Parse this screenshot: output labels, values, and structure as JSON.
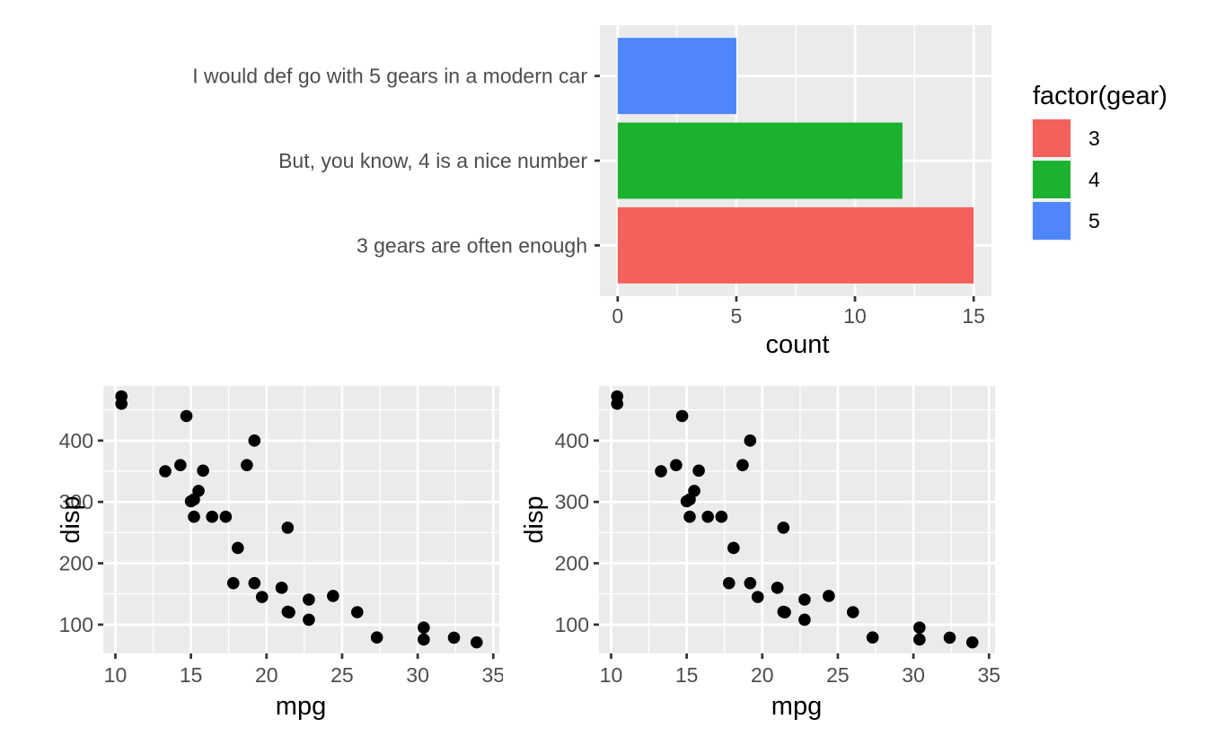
{
  "theme": {
    "background": "#FFFFFF",
    "panel_bg": "#EBEBEB",
    "grid_color": "#FFFFFF",
    "tick_label_color": "#4D4D4D",
    "axis_title_color": "#000000",
    "tick_mark_color": "#333333",
    "point_color": "#000000",
    "legend_key_bg": "#F2F2F2"
  },
  "chart_data": [
    {
      "id": "gear-bar-chart",
      "type": "bar",
      "orientation": "horizontal",
      "title": "",
      "xlabel": "count",
      "ylabel": "",
      "categories": [
        "I would def go with 5 gears in a modern car",
        "But, you know, 4 is a nice number",
        "3 gears are often enough"
      ],
      "values": [
        5,
        12,
        15
      ],
      "colors": [
        "#4F86FC",
        "#1CB22F",
        "#F4605C"
      ],
      "x_ticks": [
        0,
        5,
        10,
        15
      ],
      "xlim": [
        -0.75,
        15.75
      ],
      "grid": true,
      "legend": {
        "position": "right",
        "title": "factor(gear)",
        "entries": [
          {
            "label": "3",
            "color": "#F4605C"
          },
          {
            "label": "4",
            "color": "#1CB22F"
          },
          {
            "label": "5",
            "color": "#4F86FC"
          }
        ]
      }
    },
    {
      "id": "scatter-left",
      "type": "scatter",
      "title": "",
      "xlabel": "mpg",
      "ylabel": "disp",
      "x_ticks": [
        10,
        15,
        20,
        25,
        30,
        35
      ],
      "y_ticks": [
        100,
        200,
        300,
        400
      ],
      "xlim": [
        9.2,
        35.4
      ],
      "ylim": [
        53,
        489
      ],
      "grid": true,
      "points": [
        [
          21.0,
          160.0
        ],
        [
          21.0,
          160.0
        ],
        [
          22.8,
          108.0
        ],
        [
          21.4,
          258.0
        ],
        [
          18.7,
          360.0
        ],
        [
          18.1,
          225.0
        ],
        [
          14.3,
          360.0
        ],
        [
          24.4,
          146.7
        ],
        [
          22.8,
          140.8
        ],
        [
          19.2,
          167.6
        ],
        [
          17.8,
          167.6
        ],
        [
          16.4,
          275.8
        ],
        [
          17.3,
          275.8
        ],
        [
          15.2,
          275.8
        ],
        [
          10.4,
          472.0
        ],
        [
          10.4,
          460.0
        ],
        [
          14.7,
          440.0
        ],
        [
          32.4,
          78.7
        ],
        [
          30.4,
          75.7
        ],
        [
          33.9,
          71.1
        ],
        [
          21.5,
          120.1
        ],
        [
          15.5,
          318.0
        ],
        [
          15.2,
          304.0
        ],
        [
          13.3,
          350.0
        ],
        [
          19.2,
          400.0
        ],
        [
          27.3,
          79.0
        ],
        [
          26.0,
          120.3
        ],
        [
          30.4,
          95.1
        ],
        [
          15.8,
          351.0
        ],
        [
          19.7,
          145.0
        ],
        [
          15.0,
          301.0
        ],
        [
          21.4,
          121.0
        ]
      ]
    },
    {
      "id": "scatter-right",
      "type": "scatter",
      "title": "",
      "xlabel": "mpg",
      "ylabel": "disp",
      "x_ticks": [
        10,
        15,
        20,
        25,
        30,
        35
      ],
      "y_ticks": [
        100,
        200,
        300,
        400
      ],
      "xlim": [
        9.2,
        35.4
      ],
      "ylim": [
        53,
        489
      ],
      "grid": true,
      "points": [
        [
          21.0,
          160.0
        ],
        [
          21.0,
          160.0
        ],
        [
          22.8,
          108.0
        ],
        [
          21.4,
          258.0
        ],
        [
          18.7,
          360.0
        ],
        [
          18.1,
          225.0
        ],
        [
          14.3,
          360.0
        ],
        [
          24.4,
          146.7
        ],
        [
          22.8,
          140.8
        ],
        [
          19.2,
          167.6
        ],
        [
          17.8,
          167.6
        ],
        [
          16.4,
          275.8
        ],
        [
          17.3,
          275.8
        ],
        [
          15.2,
          275.8
        ],
        [
          10.4,
          472.0
        ],
        [
          10.4,
          460.0
        ],
        [
          14.7,
          440.0
        ],
        [
          32.4,
          78.7
        ],
        [
          30.4,
          75.7
        ],
        [
          33.9,
          71.1
        ],
        [
          21.5,
          120.1
        ],
        [
          15.5,
          318.0
        ],
        [
          15.2,
          304.0
        ],
        [
          13.3,
          350.0
        ],
        [
          19.2,
          400.0
        ],
        [
          27.3,
          79.0
        ],
        [
          26.0,
          120.3
        ],
        [
          30.4,
          95.1
        ],
        [
          15.8,
          351.0
        ],
        [
          19.7,
          145.0
        ],
        [
          15.0,
          301.0
        ],
        [
          21.4,
          121.0
        ]
      ]
    }
  ]
}
